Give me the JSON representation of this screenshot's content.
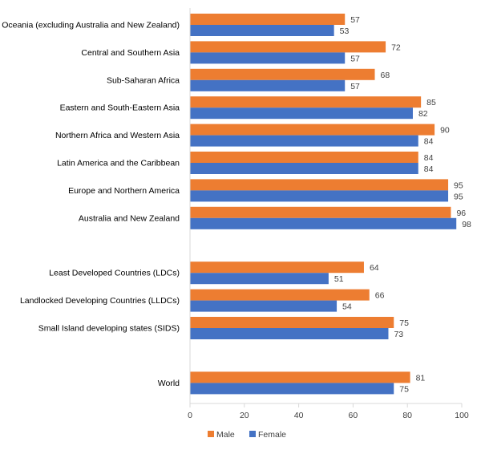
{
  "chart_data": {
    "type": "bar",
    "orientation": "horizontal",
    "title": "",
    "xlabel": "",
    "ylabel": "",
    "xlim": [
      0,
      100
    ],
    "xticks": [
      0,
      20,
      40,
      60,
      80,
      100
    ],
    "grid": false,
    "legend_position": "bottom",
    "groups": [
      {
        "categories": [
          "Oceania (excluding Australia and New Zealand)",
          "Central and Southern Asia",
          "Sub-Saharan Africa",
          "Eastern and South-Eastern Asia",
          "Northern Africa and Western Asia",
          "Latin America and the Caribbean",
          "Europe and Northern America",
          "Australia and New Zealand"
        ]
      },
      {
        "categories": [
          "Least Developed Countries (LDCs)",
          "Landlocked Developing Countries (LLDCs)",
          "Small Island developing states (SIDS)"
        ]
      },
      {
        "categories": [
          "World"
        ]
      }
    ],
    "categories": [
      "Oceania (excluding Australia and New Zealand)",
      "Central and Southern Asia",
      "Sub-Saharan Africa",
      "Eastern and South-Eastern Asia",
      "Northern Africa and Western Asia",
      "Latin America and the Caribbean",
      "Europe and Northern America",
      "Australia and New Zealand",
      "Least Developed Countries (LDCs)",
      "Landlocked Developing Countries (LLDCs)",
      "Small Island developing states (SIDS)",
      "World"
    ],
    "series": [
      {
        "name": "Male",
        "color": "#ED7D31",
        "values": [
          57,
          72,
          68,
          85,
          90,
          84,
          95,
          96,
          64,
          66,
          75,
          81
        ]
      },
      {
        "name": "Female",
        "color": "#4472C4",
        "values": [
          53,
          57,
          57,
          82,
          84,
          84,
          95,
          98,
          51,
          54,
          73,
          75
        ]
      }
    ]
  },
  "colors": {
    "male": "#ED7D31",
    "female": "#4472C4",
    "axis": "#D9D9D9",
    "label": "#404040"
  }
}
